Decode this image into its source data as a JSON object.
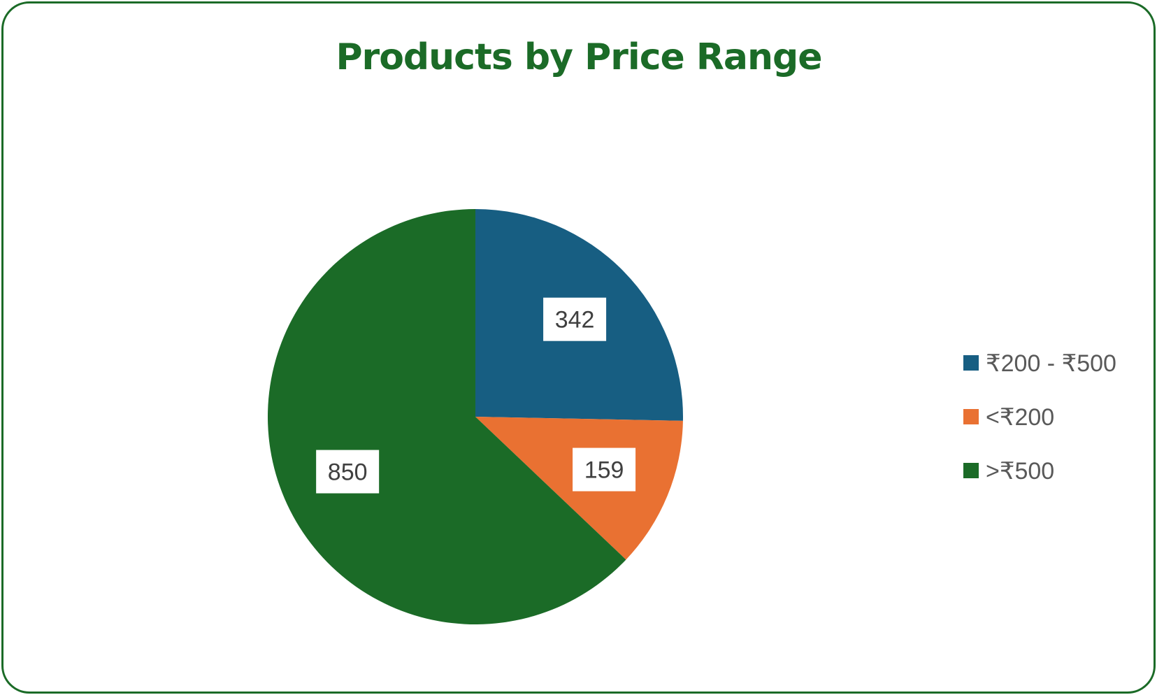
{
  "chart_data": {
    "type": "pie",
    "title": "Products by Price Range",
    "categories": [
      "₹200 - ₹500",
      "<₹200",
      ">₹500"
    ],
    "values": [
      342,
      159,
      850
    ],
    "colors": [
      "#175e82",
      "#e97132",
      "#1b6b27"
    ],
    "data_labels": [
      "342",
      "159",
      "850"
    ],
    "legend_position": "right",
    "start_angle_deg": 0,
    "direction": "clockwise"
  },
  "theme": {
    "border_color": "#1b6b27",
    "title_color": "#1b6b27"
  }
}
